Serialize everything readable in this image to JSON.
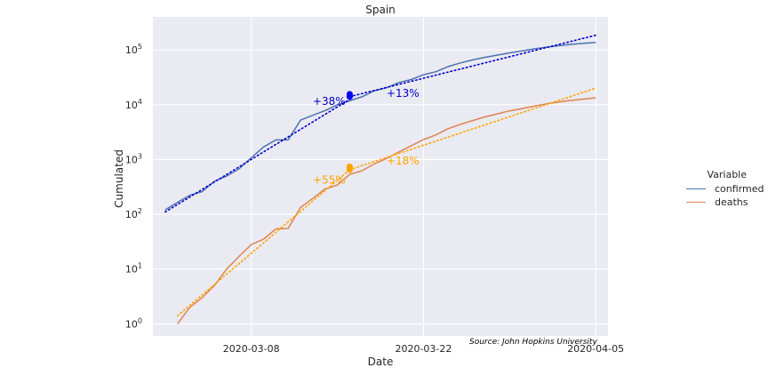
{
  "chart_data": {
    "type": "line",
    "title": "Spain",
    "xlabel": "Date",
    "ylabel": "Cumulated",
    "y_scale": "log",
    "grid": true,
    "legend_placement": "right",
    "x_ticks": [
      "2020-03-08",
      "2020-03-22",
      "2020-04-05"
    ],
    "y_ticks": [
      "10^0",
      "10^1",
      "10^2",
      "10^3",
      "10^4",
      "10^5"
    ],
    "xlim": [
      "2020-02-29",
      "2020-04-06"
    ],
    "ylim": [
      0.6,
      400000
    ],
    "legend_title": "Variable",
    "series": [
      {
        "name": "confirmed",
        "color": "#4c72b0",
        "points": [
          [
            "2020-03-01",
            120
          ],
          [
            "2020-03-02",
            165
          ],
          [
            "2020-03-03",
            222
          ],
          [
            "2020-03-04",
            259
          ],
          [
            "2020-03-05",
            400
          ],
          [
            "2020-03-06",
            500
          ],
          [
            "2020-03-07",
            673
          ],
          [
            "2020-03-08",
            1073
          ],
          [
            "2020-03-09",
            1695
          ],
          [
            "2020-03-10",
            2277
          ],
          [
            "2020-03-11",
            2277
          ],
          [
            "2020-03-12",
            5232
          ],
          [
            "2020-03-13",
            6391
          ],
          [
            "2020-03-14",
            7798
          ],
          [
            "2020-03-15",
            9942
          ],
          [
            "2020-03-16",
            11748
          ],
          [
            "2020-03-17",
            13910
          ],
          [
            "2020-03-18",
            17963
          ],
          [
            "2020-03-19",
            20410
          ],
          [
            "2020-03-20",
            25374
          ],
          [
            "2020-03-21",
            28768
          ],
          [
            "2020-03-22",
            35136
          ],
          [
            "2020-03-23",
            39885
          ],
          [
            "2020-03-24",
            49515
          ],
          [
            "2020-03-25",
            57786
          ],
          [
            "2020-03-26",
            65719
          ],
          [
            "2020-03-27",
            73235
          ],
          [
            "2020-03-28",
            80110
          ],
          [
            "2020-03-29",
            87956
          ],
          [
            "2020-03-30",
            95923
          ],
          [
            "2020-03-31",
            104118
          ],
          [
            "2020-04-01",
            112065
          ],
          [
            "2020-04-02",
            119199
          ],
          [
            "2020-04-03",
            126168
          ],
          [
            "2020-04-04",
            131646
          ],
          [
            "2020-04-05",
            136675
          ]
        ]
      },
      {
        "name": "deaths",
        "color": "#dd8452",
        "points": [
          [
            "2020-03-02",
            1
          ],
          [
            "2020-03-03",
            2
          ],
          [
            "2020-03-04",
            3
          ],
          [
            "2020-03-05",
            5
          ],
          [
            "2020-03-06",
            10
          ],
          [
            "2020-03-07",
            17
          ],
          [
            "2020-03-08",
            28
          ],
          [
            "2020-03-09",
            35
          ],
          [
            "2020-03-10",
            54
          ],
          [
            "2020-03-11",
            55
          ],
          [
            "2020-03-12",
            133
          ],
          [
            "2020-03-13",
            195
          ],
          [
            "2020-03-14",
            289
          ],
          [
            "2020-03-15",
            342
          ],
          [
            "2020-03-16",
            533
          ],
          [
            "2020-03-17",
            623
          ],
          [
            "2020-03-18",
            830
          ],
          [
            "2020-03-19",
            1043
          ],
          [
            "2020-03-20",
            1375
          ],
          [
            "2020-03-21",
            1772
          ],
          [
            "2020-03-22",
            2311
          ],
          [
            "2020-03-23",
            2808
          ],
          [
            "2020-03-24",
            3647
          ],
          [
            "2020-03-25",
            4365
          ],
          [
            "2020-03-26",
            5138
          ],
          [
            "2020-03-27",
            5982
          ],
          [
            "2020-03-28",
            6803
          ],
          [
            "2020-03-29",
            7716
          ],
          [
            "2020-03-30",
            8464
          ],
          [
            "2020-03-31",
            9387
          ],
          [
            "2020-04-01",
            10348
          ],
          [
            "2020-04-02",
            11198
          ],
          [
            "2020-04-03",
            11947
          ],
          [
            "2020-04-04",
            12641
          ],
          [
            "2020-04-05",
            13341
          ]
        ]
      }
    ],
    "trend_lines": [
      {
        "series": "confirmed",
        "color": "#0000cc",
        "points": [
          [
            "2020-03-01",
            110
          ],
          [
            "2020-03-16",
            12500
          ]
        ]
      },
      {
        "series": "confirmed",
        "color": "#0000cc",
        "points": [
          [
            "2020-03-16",
            14000
          ],
          [
            "2020-04-05",
            185000
          ]
        ]
      },
      {
        "series": "deaths",
        "color": "#ffa500",
        "points": [
          [
            "2020-03-02",
            1.4
          ],
          [
            "2020-03-16",
            650
          ]
        ]
      },
      {
        "series": "deaths",
        "color": "#ffa500",
        "points": [
          [
            "2020-03-16",
            650
          ],
          [
            "2020-04-05",
            20000
          ]
        ]
      }
    ],
    "markers": [
      {
        "color": "#0000ff",
        "x": "2020-03-16",
        "values": [
          14000,
          15500
        ]
      },
      {
        "color": "#ffa500",
        "x": "2020-03-16",
        "values": [
          650,
          740
        ]
      }
    ],
    "annotations": [
      {
        "text": "+38%",
        "color": "#0000cc",
        "x": "2020-03-13",
        "y": 11500
      },
      {
        "text": "+13%",
        "color": "#0000cc",
        "x": "2020-03-19",
        "y": 16000
      },
      {
        "text": "+55%",
        "color": "#ffa500",
        "x": "2020-03-13",
        "y": 420
      },
      {
        "text": "+18%",
        "color": "#ffa500",
        "x": "2020-03-19",
        "y": 950
      }
    ],
    "source_text": "Source: John Hopkins University"
  }
}
